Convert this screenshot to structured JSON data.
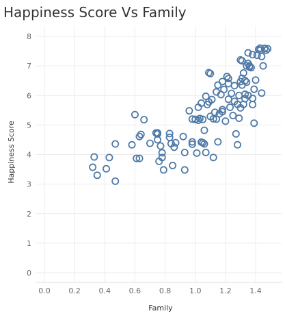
{
  "chart_data": {
    "type": "scatter",
    "title": "Happiness Score Vs Family",
    "xlabel": "Family",
    "ylabel": "Happiness Score",
    "xlim": [
      0.0,
      1.5
    ],
    "ylim": [
      0,
      8
    ],
    "x_ticks": [
      "0.0",
      "0.2",
      "0.4",
      "0.6",
      "0.8",
      "1.0",
      "1.2",
      "1.4"
    ],
    "y_ticks": [
      "0",
      "1",
      "2",
      "3",
      "4",
      "5",
      "6",
      "7",
      "8"
    ],
    "grid": true,
    "marker": "open-circle",
    "colors": {
      "marker": "#4e79a7",
      "grid": "#ececec",
      "text": "#333333",
      "tick": "#666666"
    },
    "points": [
      [
        0.33,
        3.92
      ],
      [
        0.32,
        3.57
      ],
      [
        0.35,
        3.3
      ],
      [
        0.41,
        3.52
      ],
      [
        0.43,
        3.9
      ],
      [
        0.47,
        4.36
      ],
      [
        0.47,
        3.1
      ],
      [
        0.58,
        4.33
      ],
      [
        0.6,
        5.35
      ],
      [
        0.61,
        3.87
      ],
      [
        0.63,
        3.87
      ],
      [
        0.63,
        4.61
      ],
      [
        0.64,
        4.68
      ],
      [
        0.66,
        5.18
      ],
      [
        0.7,
        4.38
      ],
      [
        0.74,
        4.73
      ],
      [
        0.75,
        4.7
      ],
      [
        0.75,
        4.5
      ],
      [
        0.76,
        3.77
      ],
      [
        0.77,
        4.29
      ],
      [
        0.78,
        3.9
      ],
      [
        0.78,
        4.06
      ],
      [
        0.79,
        3.48
      ],
      [
        0.75,
        4.73
      ],
      [
        0.83,
        4.71
      ],
      [
        0.83,
        4.58
      ],
      [
        0.84,
        4.37
      ],
      [
        0.85,
        3.63
      ],
      [
        0.86,
        4.25
      ],
      [
        0.87,
        4.4
      ],
      [
        0.92,
        4.61
      ],
      [
        0.93,
        4.07
      ],
      [
        0.93,
        3.48
      ],
      [
        0.96,
        5.48
      ],
      [
        0.98,
        4.43
      ],
      [
        0.98,
        4.35
      ],
      [
        0.98,
        5.2
      ],
      [
        1.0,
        5.19
      ],
      [
        1.01,
        4.05
      ],
      [
        1.02,
        5.16
      ],
      [
        1.02,
        5.6
      ],
      [
        1.03,
        5.22
      ],
      [
        1.04,
        4.42
      ],
      [
        1.04,
        5.74
      ],
      [
        1.05,
        4.4
      ],
      [
        1.05,
        5.19
      ],
      [
        1.06,
        4.36
      ],
      [
        1.06,
        4.82
      ],
      [
        1.07,
        4.07
      ],
      [
        1.07,
        5.97
      ],
      [
        1.08,
        5.69
      ],
      [
        1.09,
        6.77
      ],
      [
        1.1,
        6.74
      ],
      [
        1.1,
        5.29
      ],
      [
        1.11,
        5.86
      ],
      [
        1.12,
        3.9
      ],
      [
        1.12,
        5.21
      ],
      [
        1.13,
        5.43
      ],
      [
        1.14,
        5.2
      ],
      [
        1.14,
        6.12
      ],
      [
        1.15,
        4.43
      ],
      [
        1.15,
        6.35
      ],
      [
        1.16,
        5.38
      ],
      [
        1.17,
        6.03
      ],
      [
        1.18,
        5.45
      ],
      [
        1.18,
        6.47
      ],
      [
        1.19,
        6.2
      ],
      [
        1.2,
        5.13
      ],
      [
        1.21,
        6.64
      ],
      [
        1.22,
        6.4
      ],
      [
        1.22,
        6.57
      ],
      [
        1.23,
        5.6
      ],
      [
        1.24,
        6.07
      ],
      [
        1.25,
        5.32
      ],
      [
        1.26,
        5.8
      ],
      [
        1.27,
        4.7
      ],
      [
        1.28,
        5.7
      ],
      [
        1.28,
        4.33
      ],
      [
        1.29,
        5.23
      ],
      [
        1.29,
        6.0
      ],
      [
        1.3,
        5.58
      ],
      [
        1.3,
        6.47
      ],
      [
        1.31,
        7.17
      ],
      [
        1.31,
        6.35
      ],
      [
        1.31,
        6.58
      ],
      [
        1.32,
        6.76
      ],
      [
        1.32,
        5.7
      ],
      [
        1.33,
        6.04
      ],
      [
        1.33,
        5.89
      ],
      [
        1.34,
        7.0
      ],
      [
        1.34,
        6.45
      ],
      [
        1.35,
        7.08
      ],
      [
        1.35,
        7.44
      ],
      [
        1.35,
        6.0
      ],
      [
        1.36,
        6.96
      ],
      [
        1.36,
        7.0
      ],
      [
        1.37,
        6.94
      ],
      [
        1.38,
        7.38
      ],
      [
        1.38,
        5.69
      ],
      [
        1.39,
        5.06
      ],
      [
        1.39,
        6.21
      ],
      [
        1.4,
        6.52
      ],
      [
        1.41,
        7.36
      ],
      [
        1.42,
        7.56
      ],
      [
        1.43,
        7.6
      ],
      [
        1.43,
        7.53
      ],
      [
        1.44,
        6.08
      ],
      [
        1.44,
        7.32
      ],
      [
        1.45,
        7.0
      ],
      [
        1.46,
        7.59
      ],
      [
        1.47,
        7.53
      ],
      [
        1.48,
        7.58
      ],
      [
        1.3,
        7.2
      ],
      [
        1.33,
        6.5
      ],
      [
        1.38,
        5.9
      ],
      [
        1.26,
        6.33
      ],
      [
        1.22,
        5.87
      ],
      [
        1.18,
        5.52
      ],
      [
        1.09,
        5.78
      ]
    ]
  }
}
